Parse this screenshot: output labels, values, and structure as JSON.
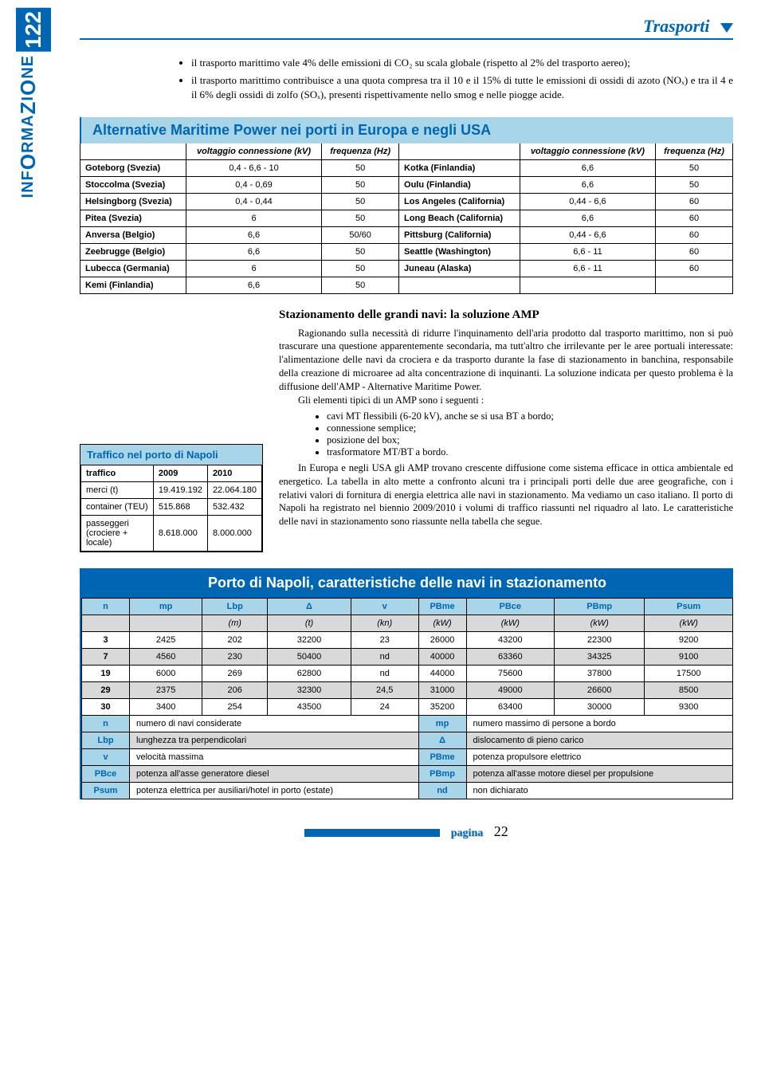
{
  "sidebar": {
    "number": "122",
    "label_html": "INF<span class='cap'>O</span>RMA<span class='cap'>Z</span>I<span class='cap'>O</span>NE"
  },
  "header": "Trasporti",
  "bullets": [
    "il trasporto marittimo vale 4% delle emissioni di CO₂ su scala globale (rispetto al 2% del trasporto aereo);",
    "il trasporto marittimo contribuisce a una quota compresa tra il 10 e il 15% di tutte le emissioni di ossidi di azoto (NOₓ) e tra il 4 e il 6% degli ossidi di zolfo (SOₓ), presenti rispettivamente nello smog e nelle piogge acide."
  ],
  "amp": {
    "title": "Alternative Maritime Power nei porti in Europa e negli USA",
    "col_volt": "voltaggio connessione (kV)",
    "col_freq": "frequenza (Hz)",
    "rows": [
      [
        "Goteborg (Svezia)",
        "0,4 - 6,6 - 10",
        "50",
        "Kotka (Finlandia)",
        "6,6",
        "50"
      ],
      [
        "Stoccolma (Svezia)",
        "0,4 - 0,69",
        "50",
        "Oulu (Finlandia)",
        "6,6",
        "50"
      ],
      [
        "Helsingborg (Svezia)",
        "0,4 - 0,44",
        "50",
        "Los Angeles (California)",
        "0,44 - 6,6",
        "60"
      ],
      [
        "Pitea (Svezia)",
        "6",
        "50",
        "Long Beach (California)",
        "6,6",
        "60"
      ],
      [
        "Anversa (Belgio)",
        "6,6",
        "50/60",
        "Pittsburg (California)",
        "0,44 - 6,6",
        "60"
      ],
      [
        "Zeebrugge (Belgio)",
        "6,6",
        "50",
        "Seattle (Washington)",
        "6,6 - 11",
        "60"
      ],
      [
        "Lubecca (Germania)",
        "6",
        "50",
        "Juneau (Alaska)",
        "6,6 - 11",
        "60"
      ],
      [
        "Kemi (Finlandia)",
        "6,6",
        "50",
        "",
        "",
        ""
      ]
    ]
  },
  "subsection": "Stazionamento delle grandi navi: la soluzione AMP",
  "para1": "Ragionando sulla necessità di ridurre l'inquinamento dell'aria prodotto dal trasporto marittimo, non si può trascurare una questione apparentemente secondaria, ma tutt'altro che irrilevante per le aree portuali interessate: l'alimentazione delle navi da crociera e da trasporto durante la fase di stazionamento in banchina, responsabile della creazione di microaree ad alta concentrazione di inquinanti. La soluzione indicata per questo problema è la diffusione dell'AMP - Alternative Maritime Power.",
  "para2": "Gli elementi tipici di un AMP sono i seguenti :",
  "amp_bullets": [
    "cavi MT flessibili (6-20 kV), anche se si usa BT a bordo;",
    "connessione semplice;",
    "posizione del box;",
    "trasformatore MT/BT a bordo."
  ],
  "para3": "In Europa e negli USA gli AMP trovano crescente diffusione come sistema efficace in ottica ambientale ed energetico. La tabella in alto mette a confronto alcuni tra i principali porti delle due aree geografiche, con i relativi valori di fornitura di energia elettrica alle navi in stazionamento. Ma vediamo un caso italiano. Il porto di Napoli ha registrato nel biennio 2009/2010 i volumi di traffico riassunti nel riquadro al lato. Le caratteristiche delle navi in stazionamento sono riassunte nella tabella che segue.",
  "traffic": {
    "title": "Traffico nel porto di Napoli",
    "cols": [
      "traffico",
      "2009",
      "2010"
    ],
    "rows": [
      [
        "merci (t)",
        "19.419.192",
        "22.064.180"
      ],
      [
        "container (TEU)",
        "515.868",
        "532.432"
      ],
      [
        "passeggeri (crociere + locale)",
        "8.618.000",
        "8.000.000"
      ]
    ]
  },
  "napoli": {
    "title": "Porto di Napoli, caratteristiche delle navi in stazionamento",
    "headers": [
      "n",
      "mp",
      "Lbp",
      "Δ",
      "v",
      "PBme",
      "PBce",
      "PBmp",
      "Psum"
    ],
    "units": [
      "",
      "",
      "(m)",
      "(t)",
      "(kn)",
      "(kW)",
      "(kW)",
      "(kW)",
      "(kW)"
    ],
    "rows": [
      [
        "3",
        "2425",
        "202",
        "32200",
        "23",
        "26000",
        "43200",
        "22300",
        "9200"
      ],
      [
        "7",
        "4560",
        "230",
        "50400",
        "nd",
        "40000",
        "63360",
        "34325",
        "9100"
      ],
      [
        "19",
        "6000",
        "269",
        "62800",
        "nd",
        "44000",
        "75600",
        "37800",
        "17500"
      ],
      [
        "29",
        "2375",
        "206",
        "32300",
        "24,5",
        "31000",
        "49000",
        "26600",
        "8500"
      ],
      [
        "30",
        "3400",
        "254",
        "43500",
        "24",
        "35200",
        "63400",
        "30000",
        "9300"
      ]
    ],
    "legend": [
      [
        "n",
        "numero di navi considerate",
        "mp",
        "numero massimo di persone a bordo"
      ],
      [
        "Lbp",
        "lunghezza tra perpendicolari",
        "Δ",
        "dislocamento di pieno carico"
      ],
      [
        "v",
        "velocità massima",
        "PBme",
        "potenza propulsore elettrico"
      ],
      [
        "PBce",
        "potenza all'asse generatore diesel",
        "PBmp",
        "potenza all'asse motore diesel per propulsione"
      ],
      [
        "Psum",
        "potenza elettrica per ausiliari/hotel in porto (estate)",
        "nd",
        "non dichiarato"
      ]
    ]
  },
  "footer": {
    "label": "pagina",
    "num": "22"
  }
}
